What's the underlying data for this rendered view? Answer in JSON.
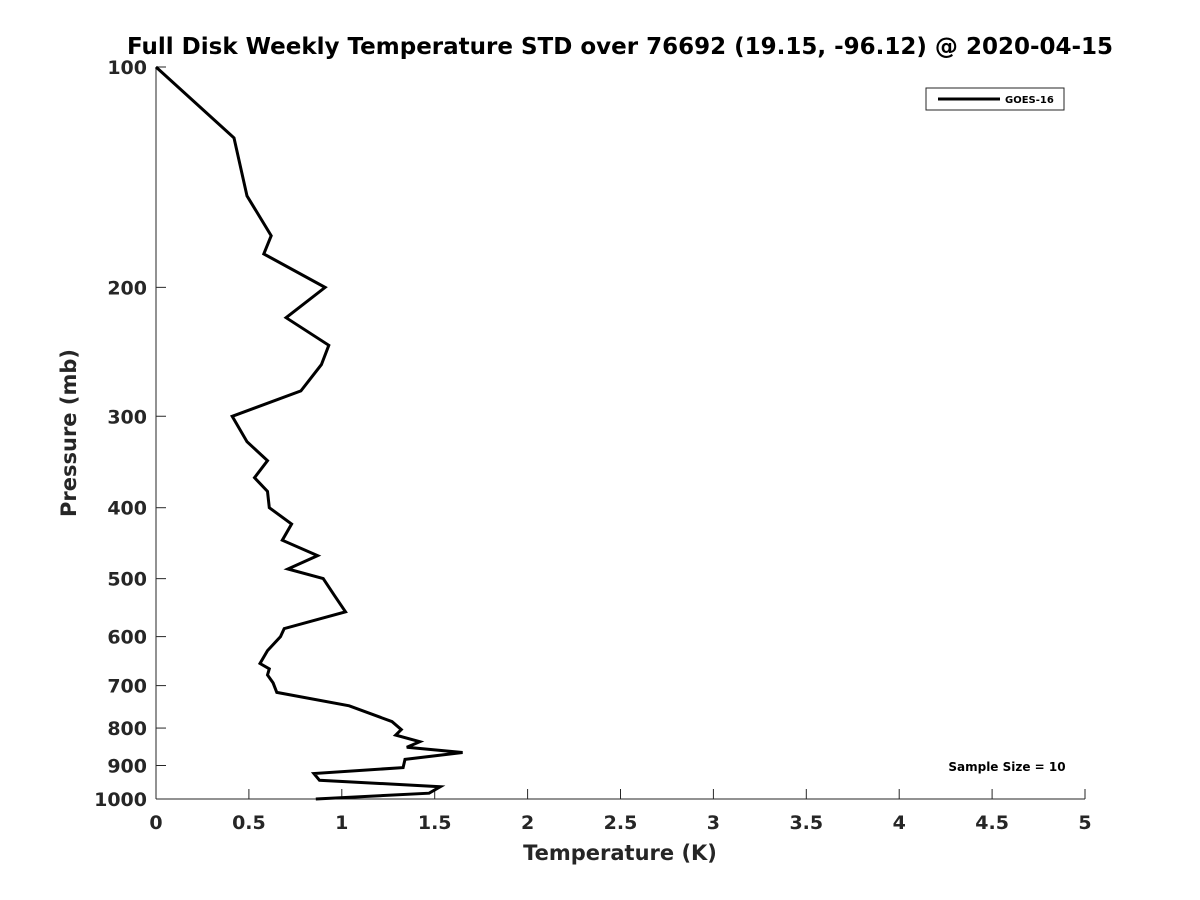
{
  "chart_data": {
    "type": "line",
    "title": "Full Disk Weekly Temperature STD over 76692 (19.15, -96.12) @ 2020-04-15",
    "xlabel": "Temperature (K)",
    "ylabel": "Pressure (mb)",
    "xlim": [
      0,
      5
    ],
    "ylim": [
      100,
      1000
    ],
    "y_scale": "log",
    "y_reversed": true,
    "grid": false,
    "legend_position": "top-right",
    "x_ticks": [
      "0",
      "0.5",
      "1",
      "1.5",
      "2",
      "2.5",
      "3",
      "3.5",
      "4",
      "4.5",
      "5"
    ],
    "y_ticks": [
      "100",
      "200",
      "300",
      "400",
      "500",
      "600",
      "700",
      "800",
      "900",
      "1000"
    ],
    "series": [
      {
        "name": "GOES-16",
        "color": "#000000",
        "points": [
          [
            0.0,
            100
          ],
          [
            0.42,
            125
          ],
          [
            0.49,
            150
          ],
          [
            0.62,
            170
          ],
          [
            0.58,
            180
          ],
          [
            0.91,
            200
          ],
          [
            0.7,
            220
          ],
          [
            0.93,
            240
          ],
          [
            0.89,
            255
          ],
          [
            0.78,
            277
          ],
          [
            0.41,
            300
          ],
          [
            0.49,
            325
          ],
          [
            0.6,
            345
          ],
          [
            0.53,
            364
          ],
          [
            0.6,
            380
          ],
          [
            0.61,
            400
          ],
          [
            0.73,
            421
          ],
          [
            0.68,
            443
          ],
          [
            0.87,
            465
          ],
          [
            0.71,
            485
          ],
          [
            0.9,
            500
          ],
          [
            0.96,
            527
          ],
          [
            1.02,
            555
          ],
          [
            0.69,
            585
          ],
          [
            0.67,
            600
          ],
          [
            0.6,
            627
          ],
          [
            0.56,
            653
          ],
          [
            0.61,
            664
          ],
          [
            0.6,
            677
          ],
          [
            0.63,
            694
          ],
          [
            0.65,
            715
          ],
          [
            1.04,
            746
          ],
          [
            1.27,
            784
          ],
          [
            1.32,
            804
          ],
          [
            1.29,
            818
          ],
          [
            1.42,
            835
          ],
          [
            1.35,
            850
          ],
          [
            1.65,
            864
          ],
          [
            1.34,
            883
          ],
          [
            1.33,
            906
          ],
          [
            0.85,
            923
          ],
          [
            0.88,
            943
          ],
          [
            1.53,
            962
          ],
          [
            1.47,
            982
          ],
          [
            0.86,
            1000
          ]
        ]
      }
    ],
    "annotation": "Sample Size = 10"
  }
}
